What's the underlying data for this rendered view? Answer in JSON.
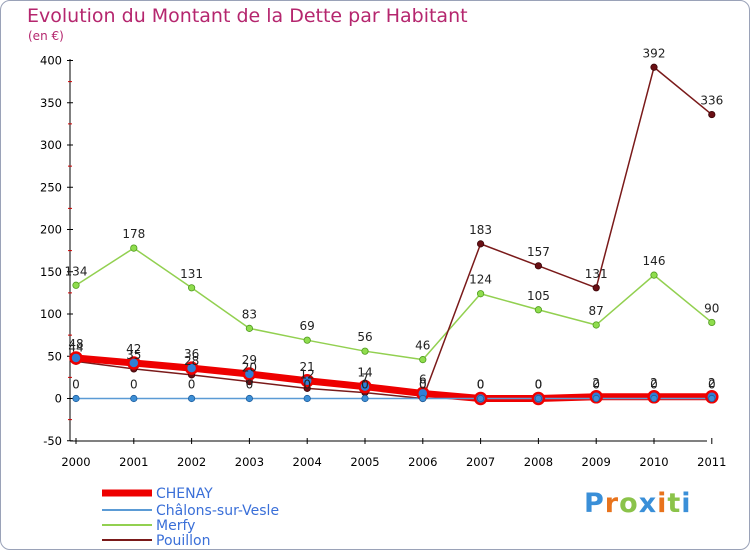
{
  "chart": {
    "title": "Evolution du Montant de la Dette par Habitant",
    "unit": "(en €)"
  },
  "logo": {
    "text": "Proxiti"
  },
  "chart_data": {
    "type": "line",
    "title": "Evolution du Montant de la Dette par Habitant",
    "subtitle": "(en €)",
    "xlabel": "",
    "ylabel": "",
    "x": [
      "2000",
      "2001",
      "2002",
      "2003",
      "2004",
      "2005",
      "2006",
      "2007",
      "2008",
      "2009",
      "2010",
      "2011"
    ],
    "ylim": [
      -50,
      400
    ],
    "yticks": [
      -50,
      0,
      50,
      100,
      150,
      200,
      250,
      300,
      350,
      400
    ],
    "grid": false,
    "legend": "bottom-left",
    "series": [
      {
        "name": "CHENAY",
        "values": [
          48,
          42,
          36,
          29,
          21,
          14,
          6,
          0,
          0,
          2,
          2,
          2
        ],
        "color": "#ee0000"
      },
      {
        "name": "Châlons-sur-Vesle",
        "values": [
          0,
          0,
          0,
          0,
          0,
          0,
          0,
          0,
          0,
          0,
          0,
          0
        ],
        "color": "#5b9bd5"
      },
      {
        "name": "Merfy",
        "values": [
          134,
          178,
          131,
          83,
          69,
          56,
          46,
          124,
          105,
          87,
          146,
          90
        ],
        "color": "#92d050"
      },
      {
        "name": "Pouillon",
        "values": [
          44,
          35,
          28,
          20,
          12,
          7,
          0,
          183,
          157,
          131,
          392,
          336
        ],
        "color": "#7a1a1a"
      }
    ]
  }
}
